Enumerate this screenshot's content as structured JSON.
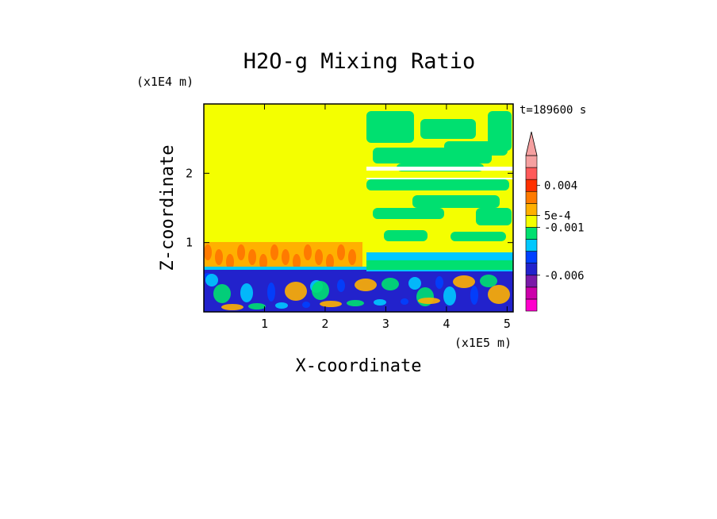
{
  "chart_data": {
    "type": "heatmap",
    "title": "H2O-g Mixing Ratio",
    "xlabel": "X-coordinate",
    "ylabel": "Z-coordinate",
    "x_unit": "(x1E5 m)",
    "y_unit": "(x1E4 m)",
    "time_label": "t=189600 s",
    "xlim": [
      0,
      5.1
    ],
    "ylim": [
      0,
      3.0
    ],
    "x_ticks": [
      "1",
      "2",
      "3",
      "4",
      "5"
    ],
    "y_ticks": [
      "1",
      "2"
    ],
    "colorbar": {
      "colors": [
        "#ff00cc",
        "#cc00aa",
        "#7a1aa8",
        "#2222cc",
        "#0040ff",
        "#00c8ff",
        "#00e070",
        "#f4ff00",
        "#ffb000",
        "#ff7a00",
        "#ff3000",
        "#ff5a5a",
        "#f5a0a0"
      ],
      "tick_labels": [
        "0.004",
        "5e-4",
        "-0.001",
        "-0.006"
      ],
      "extend": "max"
    },
    "regions": {
      "upper_field_color": "#f4ff00",
      "lower_field_color": "#2222cc",
      "warm_layer_color": "#ffb000",
      "moist_patch_color": "#00e070"
    }
  }
}
